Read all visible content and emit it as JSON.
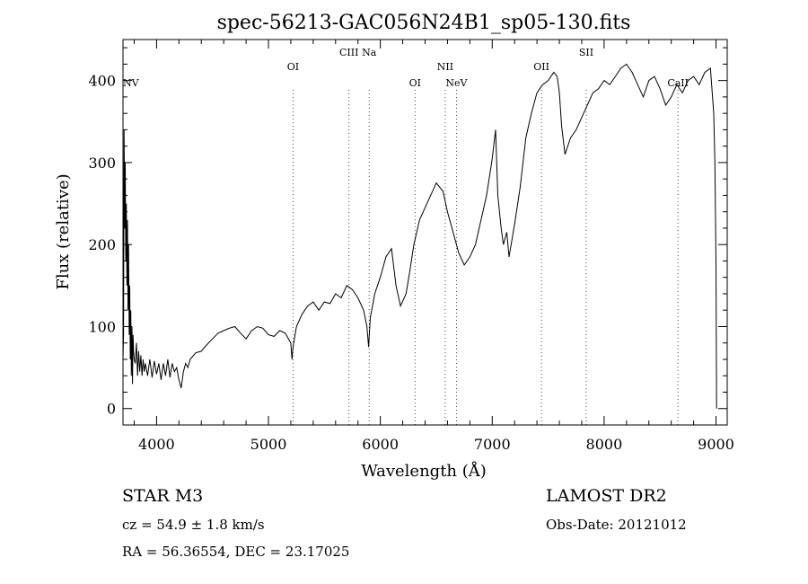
{
  "chart_data": {
    "type": "line",
    "title": "spec-56213-GAC056N24B1_sp05-130.fits",
    "xlabel": "Wavelength (Å)",
    "ylabel": "Flux (relative)",
    "xlim": [
      3700,
      9100
    ],
    "ylim": [
      -20,
      450
    ],
    "xticks": [
      4000,
      5000,
      6000,
      7000,
      8000,
      9000
    ],
    "yticks": [
      0,
      100,
      200,
      300,
      400
    ],
    "grid": false,
    "series": [
      {
        "x": [
          3700,
          3705,
          3710,
          3715,
          3720,
          3725,
          3730,
          3735,
          3740,
          3745,
          3750,
          3755,
          3760,
          3765,
          3770,
          3775,
          3780,
          3785,
          3790,
          3795,
          3800,
          3810,
          3820,
          3830,
          3840,
          3850,
          3860,
          3870,
          3880,
          3890,
          3900,
          3920,
          3940,
          3960,
          3980,
          4000,
          4020,
          4040,
          4060,
          4080,
          4100,
          4120,
          4140,
          4160,
          4180,
          4200,
          4220,
          4240,
          4260,
          4280,
          4300,
          4350,
          4400,
          4450,
          4500,
          4550,
          4600,
          4650,
          4700,
          4750,
          4800,
          4850,
          4900,
          4950,
          5000,
          5050,
          5100,
          5150,
          5200,
          5210,
          5220,
          5250,
          5300,
          5350,
          5400,
          5450,
          5500,
          5550,
          5600,
          5650,
          5700,
          5750,
          5800,
          5850,
          5880,
          5895,
          5910,
          5950,
          6000,
          6050,
          6100,
          6140,
          6180,
          6230,
          6260,
          6300,
          6350,
          6400,
          6450,
          6500,
          6560,
          6600,
          6650,
          6700,
          6750,
          6800,
          6850,
          6900,
          6950,
          7000,
          7030,
          7050,
          7080,
          7100,
          7130,
          7150,
          7200,
          7250,
          7300,
          7350,
          7400,
          7450,
          7500,
          7550,
          7580,
          7600,
          7620,
          7650,
          7700,
          7750,
          7800,
          7850,
          7900,
          7950,
          8000,
          8050,
          8100,
          8150,
          8200,
          8250,
          8300,
          8350,
          8400,
          8450,
          8500,
          8550,
          8600,
          8650,
          8700,
          8750,
          8800,
          8850,
          8900,
          8950,
          8980,
          8990,
          9000,
          9005
        ],
        "values": [
          60,
          90,
          340,
          220,
          300,
          180,
          250,
          150,
          230,
          120,
          200,
          90,
          150,
          60,
          120,
          40,
          100,
          30,
          90,
          70,
          60,
          55,
          80,
          40,
          70,
          45,
          65,
          40,
          60,
          45,
          55,
          40,
          60,
          38,
          58,
          42,
          55,
          35,
          55,
          40,
          60,
          38,
          55,
          45,
          50,
          35,
          25,
          45,
          55,
          50,
          60,
          68,
          70,
          78,
          85,
          92,
          95,
          98,
          100,
          92,
          85,
          95,
          100,
          98,
          90,
          88,
          95,
          92,
          80,
          60,
          75,
          100,
          115,
          125,
          130,
          120,
          130,
          128,
          140,
          135,
          150,
          145,
          135,
          120,
          100,
          75,
          110,
          140,
          160,
          185,
          195,
          150,
          125,
          140,
          165,
          200,
          230,
          245,
          260,
          275,
          265,
          240,
          215,
          190,
          175,
          185,
          200,
          230,
          260,
          305,
          340,
          260,
          220,
          200,
          215,
          185,
          225,
          270,
          330,
          360,
          385,
          395,
          400,
          410,
          405,
          385,
          345,
          310,
          330,
          340,
          355,
          370,
          385,
          390,
          400,
          395,
          405,
          415,
          420,
          410,
          395,
          380,
          400,
          405,
          390,
          370,
          380,
          395,
          385,
          400,
          405,
          395,
          410,
          415,
          360,
          300,
          180,
          0
        ]
      }
    ],
    "lines": [
      {
        "label": "NV",
        "x": 3700,
        "tier": "low"
      },
      {
        "label": "OI",
        "x": 5220,
        "tier": "mid"
      },
      {
        "label": "CIII",
        "x": 5720,
        "tier": "high"
      },
      {
        "label": "Na",
        "x": 5900,
        "tier": "high"
      },
      {
        "label": "OI",
        "x": 6310,
        "tier": "low"
      },
      {
        "label": "NII",
        "x": 6580,
        "tier": "mid"
      },
      {
        "label": "NeV",
        "x": 6680,
        "tier": "low"
      },
      {
        "label": "OII",
        "x": 7440,
        "tier": "mid"
      },
      {
        "label": "SII",
        "x": 7840,
        "tier": "high"
      },
      {
        "label": "CaII",
        "x": 8660,
        "tier": "low"
      }
    ]
  },
  "info": {
    "object": "STAR    M3",
    "survey": "LAMOST DR2",
    "cz": "cz = 54.9 ± 1.8 km/s",
    "obs_date": "Obs-Date: 20121012",
    "coords": "RA =  56.36554, DEC =  23.17025"
  }
}
